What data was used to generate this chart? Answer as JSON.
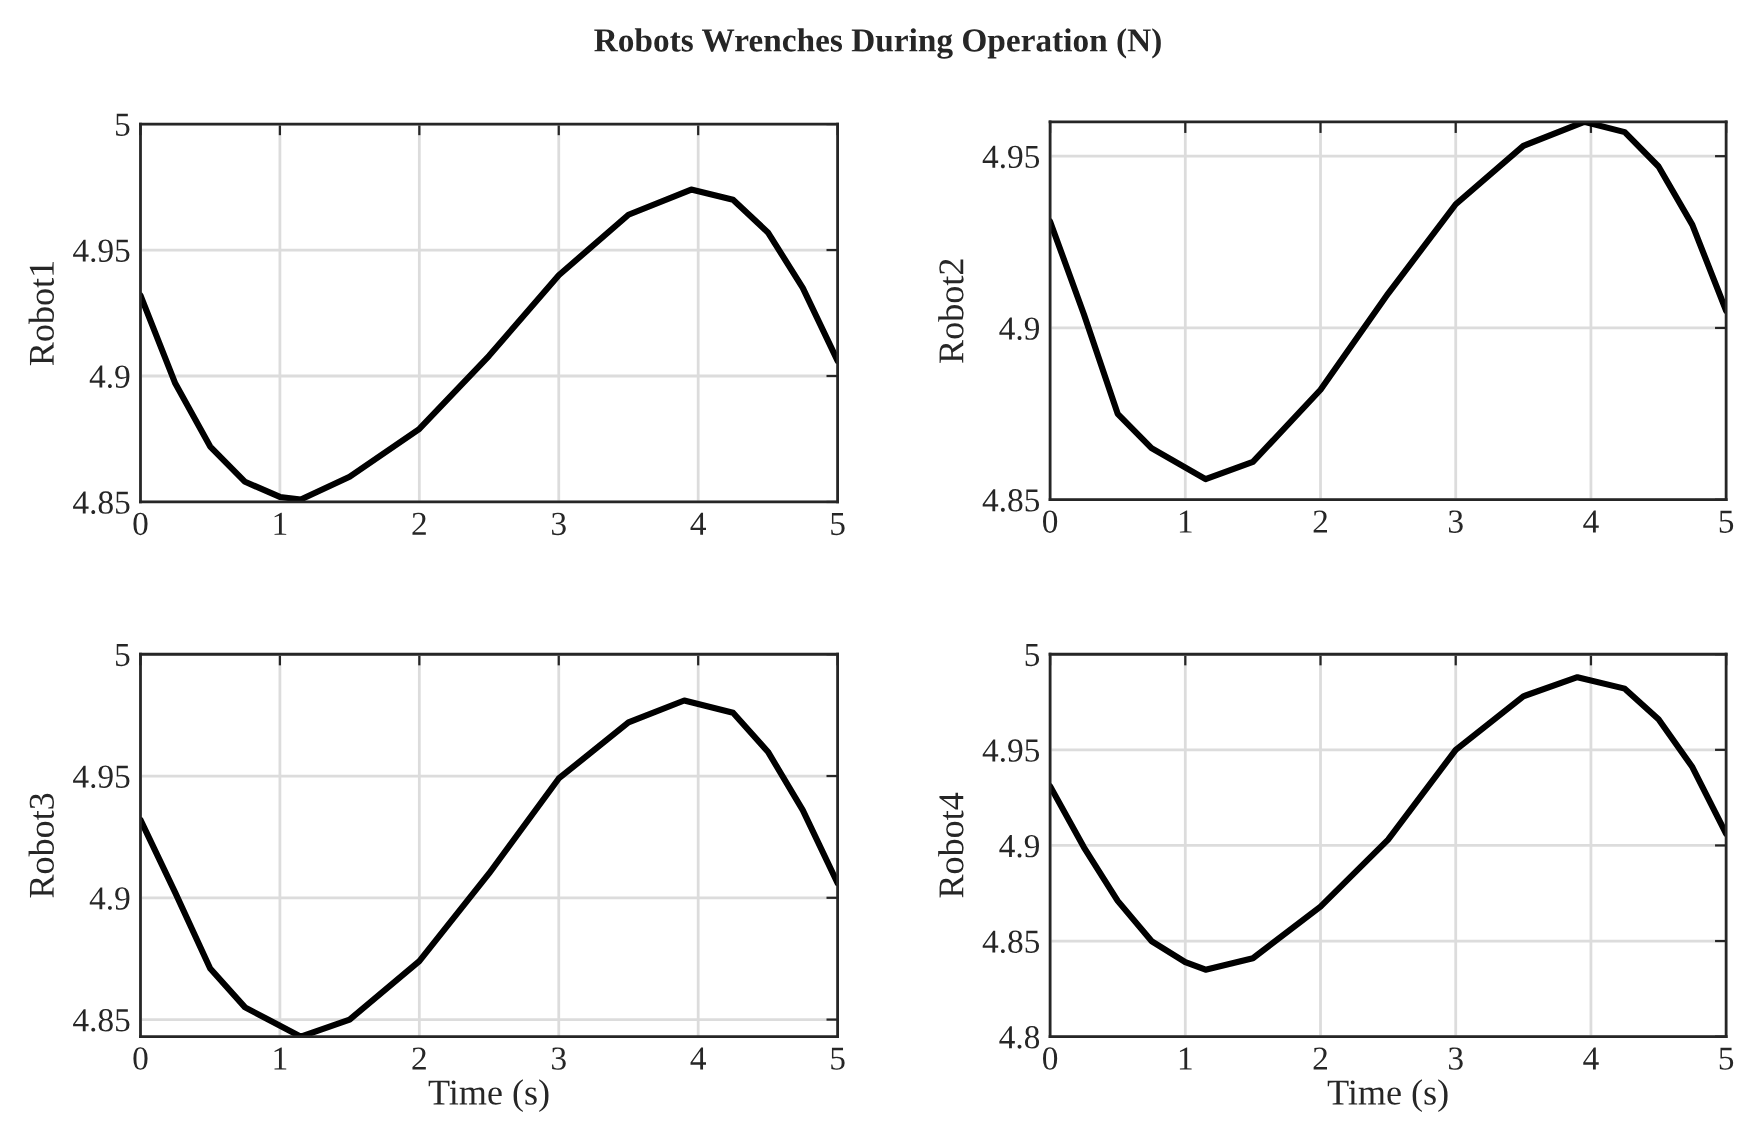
{
  "chart_data": [
    {
      "type": "line",
      "title": "Robots Wrenches During Operation (N)",
      "ylabel": "Robot1",
      "xlim": [
        0,
        5
      ],
      "xticks": [
        0,
        1,
        2,
        3,
        4,
        5
      ],
      "ylim": [
        4.85,
        5
      ],
      "yticks": [
        4.85,
        4.9,
        4.95,
        5
      ],
      "grid": true,
      "legend": false,
      "series": [
        {
          "color": "#000000",
          "x": [
            0,
            0.25,
            0.5,
            0.75,
            1,
            1.15,
            1.5,
            2,
            2.5,
            3,
            3.5,
            3.95,
            4.25,
            4.5,
            4.75,
            5
          ],
          "values": [
            4.932,
            4.897,
            4.872,
            4.858,
            4.852,
            4.851,
            4.86,
            4.879,
            4.908,
            4.94,
            4.964,
            4.974,
            4.97,
            4.957,
            4.935,
            4.906
          ]
        }
      ]
    },
    {
      "type": "line",
      "ylabel": "Robot2",
      "xlim": [
        0,
        5
      ],
      "xticks": [
        0,
        1,
        2,
        3,
        4,
        5
      ],
      "ylim": [
        4.85,
        4.96
      ],
      "yticks": [
        4.85,
        4.9,
        4.95
      ],
      "grid": true,
      "legend": false,
      "series": [
        {
          "color": "#000000",
          "x": [
            0,
            0.25,
            0.5,
            0.75,
            1.15,
            1.5,
            2,
            2.5,
            3,
            3.5,
            3.95,
            4.25,
            4.5,
            4.75,
            5
          ],
          "values": [
            4.931,
            4.904,
            4.875,
            4.865,
            4.856,
            4.861,
            4.882,
            4.91,
            4.936,
            4.953,
            4.96,
            4.957,
            4.947,
            4.93,
            4.905
          ]
        }
      ]
    },
    {
      "type": "line",
      "ylabel": "Robot3",
      "xlabel": "Time (s)",
      "xlim": [
        0,
        5
      ],
      "xticks": [
        0,
        1,
        2,
        3,
        4,
        5
      ],
      "ylim": [
        4.843,
        5
      ],
      "yticks": [
        4.85,
        4.9,
        4.95,
        5
      ],
      "grid": true,
      "legend": false,
      "series": [
        {
          "color": "#000000",
          "x": [
            0,
            0.25,
            0.5,
            0.75,
            1.15,
            1.5,
            2,
            2.5,
            3,
            3.5,
            3.9,
            4.25,
            4.5,
            4.75,
            5
          ],
          "values": [
            4.932,
            4.902,
            4.871,
            4.855,
            4.843,
            4.85,
            4.874,
            4.91,
            4.949,
            4.972,
            4.981,
            4.976,
            4.96,
            4.936,
            4.906
          ]
        }
      ]
    },
    {
      "type": "line",
      "ylabel": "Robot4",
      "xlabel": "Time (s)",
      "xlim": [
        0,
        5
      ],
      "xticks": [
        0,
        1,
        2,
        3,
        4,
        5
      ],
      "ylim": [
        4.8,
        5
      ],
      "yticks": [
        4.8,
        4.85,
        4.9,
        4.95,
        5
      ],
      "grid": true,
      "legend": false,
      "series": [
        {
          "color": "#000000",
          "x": [
            0,
            0.25,
            0.5,
            0.75,
            1,
            1.15,
            1.5,
            2,
            2.5,
            3,
            3.5,
            3.9,
            4.25,
            4.5,
            4.75,
            5
          ],
          "values": [
            4.931,
            4.899,
            4.871,
            4.85,
            4.839,
            4.835,
            4.841,
            4.868,
            4.903,
            4.95,
            4.978,
            4.988,
            4.982,
            4.966,
            4.941,
            4.906
          ]
        }
      ]
    }
  ]
}
